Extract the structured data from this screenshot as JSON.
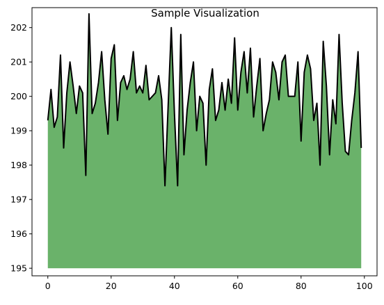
{
  "chart_data": {
    "type": "area",
    "title": "Sample Visualization",
    "xlabel": "",
    "ylabel": "",
    "xlim": [
      -5,
      104
    ],
    "ylim": [
      194.78,
      202.58
    ],
    "baseline": 195,
    "fill_color": "#6ab26a",
    "line_color": "#000000",
    "grid": false,
    "legend": "none",
    "x_ticks": [
      0,
      20,
      40,
      60,
      80,
      100
    ],
    "x_tick_labels": [
      "0",
      "20",
      "40",
      "60",
      "80",
      "100"
    ],
    "y_ticks": [
      195,
      196,
      197,
      198,
      199,
      200,
      201,
      202
    ],
    "y_tick_labels": [
      "195",
      "196",
      "197",
      "198",
      "199",
      "200",
      "201",
      "202"
    ],
    "x": [
      0,
      1,
      2,
      3,
      4,
      5,
      6,
      7,
      8,
      9,
      10,
      11,
      12,
      13,
      14,
      15,
      16,
      17,
      18,
      19,
      20,
      21,
      22,
      23,
      24,
      25,
      26,
      27,
      28,
      29,
      30,
      31,
      32,
      33,
      34,
      35,
      36,
      37,
      38,
      39,
      40,
      41,
      42,
      43,
      44,
      45,
      46,
      47,
      48,
      49,
      50,
      51,
      52,
      53,
      54,
      55,
      56,
      57,
      58,
      59,
      60,
      61,
      62,
      63,
      64,
      65,
      66,
      67,
      68,
      69,
      70,
      71,
      72,
      73,
      74,
      75,
      76,
      77,
      78,
      79,
      80,
      81,
      82,
      83,
      84,
      85,
      86,
      87,
      88,
      89,
      90,
      91,
      92,
      93,
      94,
      95,
      96,
      97,
      98,
      99
    ],
    "y": [
      199.3,
      200.2,
      199.1,
      199.4,
      201.2,
      198.5,
      200.1,
      201.0,
      200.3,
      199.5,
      200.3,
      200.1,
      197.7,
      202.4,
      199.5,
      199.8,
      200.4,
      201.3,
      199.9,
      198.9,
      201.1,
      201.5,
      199.3,
      200.4,
      200.6,
      200.2,
      200.5,
      201.3,
      200.1,
      200.3,
      200.1,
      200.9,
      199.9,
      200.0,
      200.1,
      200.6,
      199.9,
      197.4,
      199.7,
      202.0,
      199.5,
      197.4,
      201.8,
      198.3,
      199.6,
      200.4,
      201.0,
      199.0,
      200.0,
      199.8,
      198.0,
      200.2,
      200.8,
      199.3,
      199.6,
      200.4,
      199.6,
      200.5,
      199.8,
      201.7,
      199.6,
      200.7,
      201.3,
      200.1,
      201.4,
      199.4,
      200.3,
      201.1,
      199.0,
      199.5,
      199.9,
      201.0,
      200.7,
      199.9,
      201.0,
      201.2,
      200.0,
      200.0,
      200.0,
      201.0,
      198.7,
      200.7,
      201.2,
      200.8,
      199.3,
      199.8,
      198.0,
      201.6,
      200.3,
      198.3,
      199.9,
      199.2,
      201.8,
      199.8,
      198.4,
      198.3,
      199.3,
      200.1,
      201.3,
      198.5
    ]
  }
}
